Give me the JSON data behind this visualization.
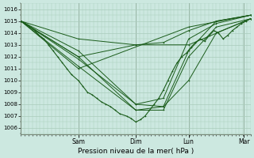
{
  "xlabel": "Pression niveau de la mer( hPa )",
  "ylim": [
    1005.5,
    1016.5
  ],
  "yticks": [
    1006,
    1007,
    1008,
    1009,
    1010,
    1011,
    1012,
    1013,
    1014,
    1015,
    1016
  ],
  "bg_color": "#cce8e0",
  "grid_color": "#aaccbb",
  "line_color": "#1a5c1a",
  "day_positions": [
    0.25,
    0.5,
    0.73,
    0.97
  ],
  "day_labels": [
    "Sam",
    "Dim",
    "Lun",
    "Mar"
  ],
  "lines": [
    {
      "x": [
        0.0,
        0.25,
        0.73,
        1.0
      ],
      "y": [
        1015.0,
        1011.0,
        1014.5,
        1015.5
      ]
    },
    {
      "x": [
        0.0,
        0.25,
        0.5,
        0.73,
        1.0
      ],
      "y": [
        1015.0,
        1012.0,
        1013.0,
        1013.0,
        1015.2
      ]
    },
    {
      "x": [
        0.0,
        0.25,
        0.5,
        0.62,
        0.73,
        0.85,
        1.0
      ],
      "y": [
        1015.0,
        1013.5,
        1013.0,
        1013.2,
        1014.2,
        1015.0,
        1015.5
      ]
    },
    {
      "x": [
        0.0,
        0.25,
        0.5,
        0.62,
        0.73,
        0.85,
        1.0
      ],
      "y": [
        1015.0,
        1012.5,
        1008.0,
        1008.5,
        1013.5,
        1014.8,
        1015.5
      ]
    },
    {
      "x": [
        0.0,
        0.25,
        0.5,
        0.62,
        0.73,
        0.85,
        1.0
      ],
      "y": [
        1015.0,
        1011.8,
        1008.0,
        1007.8,
        1012.5,
        1015.0,
        1015.5
      ]
    },
    {
      "x": [
        0.0,
        0.25,
        0.5,
        0.62,
        0.73,
        0.85,
        1.0
      ],
      "y": [
        1015.0,
        1012.0,
        1007.5,
        1007.5,
        1012.0,
        1014.5,
        1015.2
      ]
    },
    {
      "x": [
        0.0,
        0.25,
        0.5,
        0.62,
        0.73,
        0.85,
        1.0
      ],
      "y": [
        1015.0,
        1011.2,
        1007.5,
        1007.8,
        1010.0,
        1014.0,
        1015.2
      ]
    }
  ],
  "wiggly_line": {
    "x": [
      0.0,
      0.02,
      0.04,
      0.06,
      0.08,
      0.1,
      0.12,
      0.14,
      0.16,
      0.18,
      0.2,
      0.22,
      0.25,
      0.27,
      0.29,
      0.31,
      0.33,
      0.35,
      0.37,
      0.39,
      0.41,
      0.43,
      0.46,
      0.48,
      0.5,
      0.52,
      0.54,
      0.56,
      0.58,
      0.6,
      0.62,
      0.64,
      0.66,
      0.68,
      0.7,
      0.72,
      0.74,
      0.76,
      0.78,
      0.8,
      0.82,
      0.84,
      0.86,
      0.88,
      0.9,
      0.92,
      0.94,
      0.96,
      0.98,
      1.0
    ],
    "y": [
      1015.0,
      1014.8,
      1014.5,
      1014.2,
      1013.8,
      1013.5,
      1013.0,
      1012.5,
      1012.0,
      1011.5,
      1011.0,
      1010.5,
      1010.0,
      1009.5,
      1009.0,
      1008.8,
      1008.5,
      1008.2,
      1008.0,
      1007.8,
      1007.5,
      1007.2,
      1007.0,
      1006.8,
      1006.5,
      1006.7,
      1007.0,
      1007.5,
      1008.0,
      1008.5,
      1009.2,
      1010.0,
      1010.8,
      1011.5,
      1012.0,
      1012.3,
      1012.8,
      1013.2,
      1013.5,
      1013.3,
      1013.8,
      1014.2,
      1014.0,
      1013.5,
      1013.8,
      1014.2,
      1014.5,
      1014.8,
      1015.0,
      1015.2
    ]
  }
}
